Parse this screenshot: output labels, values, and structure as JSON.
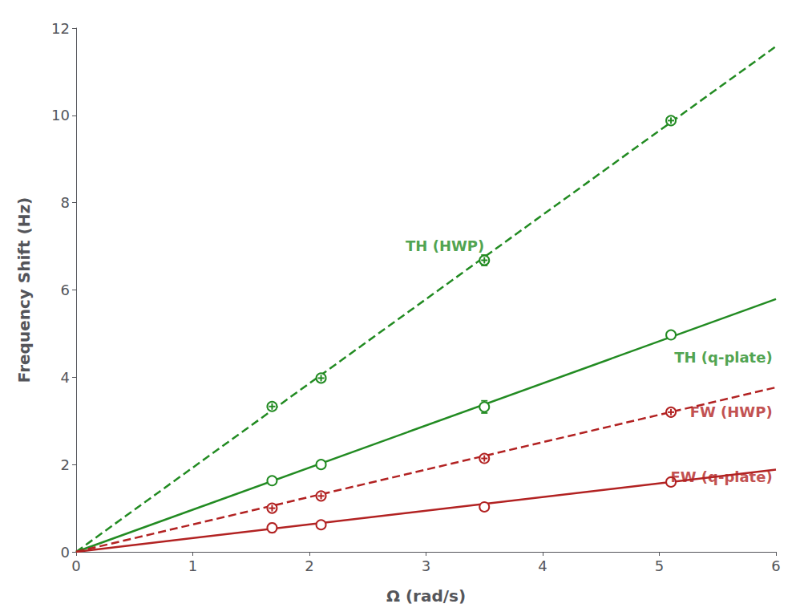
{
  "chart_data": {
    "type": "scatter",
    "xlabel": "Ω (rad/s)",
    "ylabel": "Frequency Shift (Hz)",
    "xlim": [
      0,
      6
    ],
    "ylim": [
      0,
      12
    ],
    "xticks": [
      0,
      1,
      2,
      3,
      4,
      5,
      6
    ],
    "yticks": [
      0,
      2,
      4,
      6,
      8,
      10,
      12
    ],
    "grid": false,
    "series": [
      {
        "type": "line",
        "color": "#228B22",
        "line_style": "dashed",
        "x": [
          0,
          6
        ],
        "values": [
          0,
          11.58
        ]
      },
      {
        "type": "scatter",
        "color": "#228B22",
        "marker": "circle-plus",
        "x": [
          1.68,
          2.1,
          3.5,
          5.1
        ],
        "values": [
          3.33,
          3.98,
          6.68,
          9.88
        ],
        "yerr": [
          0.05,
          0.05,
          0.12,
          0.05
        ]
      },
      {
        "type": "line",
        "color": "#228B22",
        "line_style": "solid",
        "x": [
          0,
          6
        ],
        "values": [
          0,
          5.79
        ]
      },
      {
        "type": "scatter",
        "color": "#228B22",
        "marker": "circle",
        "x": [
          1.68,
          2.1,
          3.5,
          5.1
        ],
        "values": [
          1.63,
          2.0,
          3.32,
          4.97
        ],
        "yerr": [
          0.05,
          0.05,
          0.14,
          0.05
        ]
      },
      {
        "type": "line",
        "color": "#B22222",
        "line_style": "dashed",
        "x": [
          0,
          6
        ],
        "values": [
          0,
          3.768
        ]
      },
      {
        "type": "scatter",
        "color": "#B22222",
        "marker": "circle-plus",
        "x": [
          1.68,
          2.1,
          3.5,
          5.1
        ],
        "values": [
          1.0,
          1.28,
          2.14,
          3.2
        ],
        "yerr": [
          0.05,
          0.05,
          0.05,
          0.05
        ]
      },
      {
        "type": "line",
        "color": "#B22222",
        "line_style": "solid",
        "x": [
          0,
          6
        ],
        "values": [
          0,
          1.884
        ]
      },
      {
        "type": "scatter",
        "color": "#B22222",
        "marker": "circle",
        "x": [
          1.68,
          2.1,
          3.5,
          5.1
        ],
        "values": [
          0.55,
          0.62,
          1.03,
          1.6
        ],
        "yerr": [
          0.1,
          0.05,
          0.05,
          0.08
        ]
      }
    ],
    "annotations": [
      {
        "text": "TH (HWP)",
        "x": 3.5,
        "y": 6.85,
        "color": "#228B22"
      },
      {
        "text": "TH (q-plate)",
        "x": 5.97,
        "y": 4.3,
        "color": "#228B22"
      },
      {
        "text": "FW (HWP)",
        "x": 5.97,
        "y": 3.05,
        "color": "#B22222"
      },
      {
        "text": "FW (q-plate)",
        "x": 5.97,
        "y": 1.55,
        "color": "#B22222"
      }
    ]
  }
}
